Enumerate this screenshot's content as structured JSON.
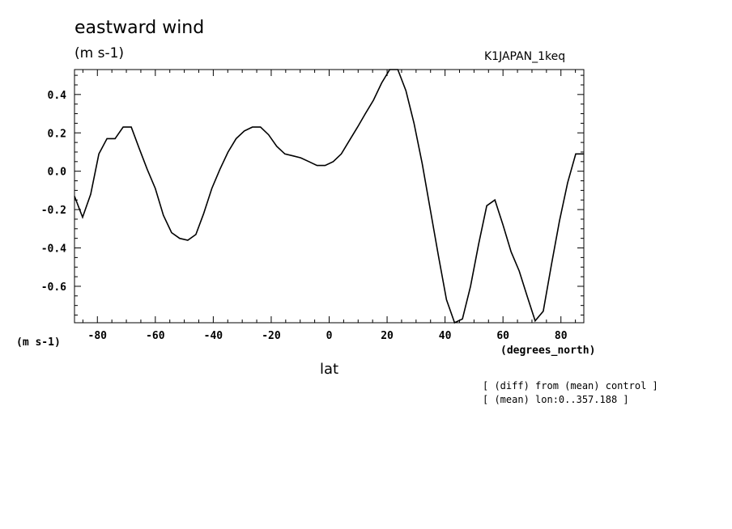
{
  "header": {
    "title": "eastward wind",
    "units": "(m s-1)",
    "dataset": "K1JAPAN_1keq"
  },
  "axes": {
    "y_units": "(m s-1)",
    "x_units": "(degrees_north)",
    "x_name": "lat"
  },
  "notes": [
    "[ (diff) from (mean) control ]",
    "[ (mean) lon:0..357.188 ]"
  ],
  "chart_data": {
    "type": "line",
    "title": "eastward wind",
    "xlabel": "lat",
    "ylabel": "(m s-1)",
    "xlim": [
      -87.9,
      87.9
    ],
    "ylim": [
      -0.79,
      0.53
    ],
    "xticks": [
      -80,
      -60,
      -40,
      -20,
      0,
      20,
      40,
      60,
      80
    ],
    "xtick_labels": [
      "-80",
      "-60",
      "-40",
      "-20",
      "0",
      "20",
      "40",
      "60",
      "80"
    ],
    "yticks": [
      -0.6,
      -0.4,
      -0.2,
      0.0,
      0.2,
      0.4
    ],
    "ytick_labels": [
      "-0.6",
      "-0.4",
      "-0.2",
      "0.0",
      "0.2",
      "0.4"
    ],
    "grid": false,
    "series": [
      {
        "x": [
          -87.9,
          -85.1,
          -82.3,
          -79.5,
          -76.7,
          -73.9,
          -71.1,
          -68.3,
          -65.6,
          -62.8,
          -60.0,
          -57.2,
          -54.4,
          -51.6,
          -48.8,
          -46.0,
          -43.3,
          -40.5,
          -37.7,
          -34.9,
          -32.1,
          -29.3,
          -26.5,
          -23.7,
          -20.9,
          -18.1,
          -15.3,
          -12.5,
          -9.8,
          -7.0,
          -4.2,
          -1.4,
          1.4,
          4.2,
          7.0,
          9.8,
          12.5,
          15.3,
          18.1,
          20.9,
          23.7,
          26.5,
          29.3,
          32.1,
          34.9,
          37.7,
          40.5,
          43.3,
          46.0,
          48.8,
          51.6,
          54.4,
          57.2,
          60.0,
          62.8,
          65.6,
          68.3,
          71.1,
          73.9,
          76.7,
          79.5,
          82.3,
          85.1,
          87.9
        ],
        "y": [
          -0.13,
          -0.24,
          -0.12,
          0.09,
          0.17,
          0.17,
          0.23,
          0.23,
          0.12,
          0.01,
          -0.09,
          -0.23,
          -0.32,
          -0.35,
          -0.36,
          -0.33,
          -0.22,
          -0.09,
          0.01,
          0.1,
          0.17,
          0.21,
          0.23,
          0.23,
          0.19,
          0.13,
          0.09,
          0.08,
          0.07,
          0.05,
          0.03,
          0.03,
          0.05,
          0.09,
          0.16,
          0.23,
          0.3,
          0.37,
          0.46,
          0.53,
          0.53,
          0.42,
          0.25,
          0.04,
          -0.2,
          -0.44,
          -0.67,
          -0.79,
          -0.77,
          -0.6,
          -0.38,
          -0.18,
          -0.15,
          -0.28,
          -0.42,
          -0.52,
          -0.65,
          -0.78,
          -0.73,
          -0.49,
          -0.26,
          -0.06,
          0.09,
          0.09
        ]
      }
    ]
  }
}
